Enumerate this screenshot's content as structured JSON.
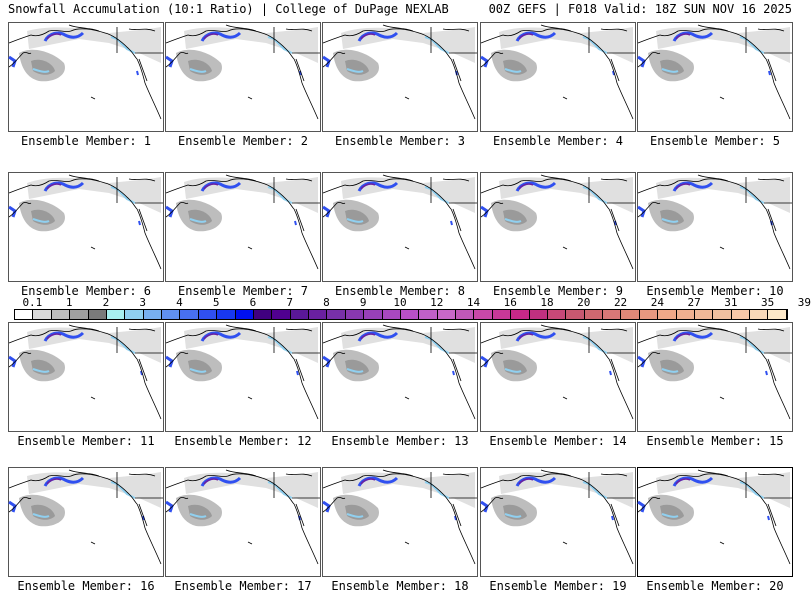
{
  "header": {
    "left_title": "Snowfall Accumulation (10:1 Ratio) | College of DuPage NEXLAB",
    "right_title": "00Z GEFS | F018 Valid: 18Z SUN NOV 16 2025"
  },
  "panels": [
    {
      "label": "Ensemble Member: 1"
    },
    {
      "label": "Ensemble Member: 2"
    },
    {
      "label": "Ensemble Member: 3"
    },
    {
      "label": "Ensemble Member: 4"
    },
    {
      "label": "Ensemble Member: 5"
    },
    {
      "label": "Ensemble Member: 6"
    },
    {
      "label": "Ensemble Member: 7"
    },
    {
      "label": "Ensemble Member: 8"
    },
    {
      "label": "Ensemble Member: 9"
    },
    {
      "label": "Ensemble Member: 10"
    },
    {
      "label": "Ensemble Member: 11"
    },
    {
      "label": "Ensemble Member: 12"
    },
    {
      "label": "Ensemble Member: 13"
    },
    {
      "label": "Ensemble Member: 14"
    },
    {
      "label": "Ensemble Member: 15"
    },
    {
      "label": "Ensemble Member: 16"
    },
    {
      "label": "Ensemble Member: 17"
    },
    {
      "label": "Ensemble Member: 18"
    },
    {
      "label": "Ensemble Member: 19"
    },
    {
      "label": "Ensemble Member: 20"
    }
  ],
  "colorbar": {
    "labels": [
      "0.1",
      "1",
      "2",
      "3",
      "4",
      "5",
      "6",
      "7",
      "8",
      "9",
      "10",
      "12",
      "14",
      "16",
      "18",
      "20",
      "22",
      "24",
      "27",
      "31",
      "35",
      "39"
    ],
    "colors": [
      "#ffffff",
      "#d9d9d9",
      "#bdbdbd",
      "#a0a0a0",
      "#7a7a7a",
      "#a8f0f0",
      "#90d0f0",
      "#78b0f0",
      "#6090f0",
      "#4870f0",
      "#3050f0",
      "#1838f0",
      "#0010f0",
      "#400080",
      "#500090",
      "#5a1898",
      "#6a20a0",
      "#7830a8",
      "#8838b0",
      "#9840b8",
      "#a848c0",
      "#b850c8",
      "#c060c8",
      "#c868c8",
      "#c058b8",
      "#c848a8",
      "#c83898",
      "#c82888",
      "#c03080",
      "#c84878",
      "#c85870",
      "#d06870",
      "#d87878",
      "#e08878",
      "#e89880",
      "#f0a888",
      "#f0b090",
      "#f0b898",
      "#f0c0a0",
      "#f8c8a8",
      "#f8d8b8",
      "#fde8c8"
    ]
  },
  "map_colors": {
    "land_outline": "#000000",
    "snow_light": "#e0e0e0",
    "snow_mid": "#bdbdbd",
    "snow_dark": "#9a9a9a",
    "snow_blue": "#3050f0",
    "snow_cyan": "#90d0f0",
    "snow_purple": "#6a20a0"
  }
}
